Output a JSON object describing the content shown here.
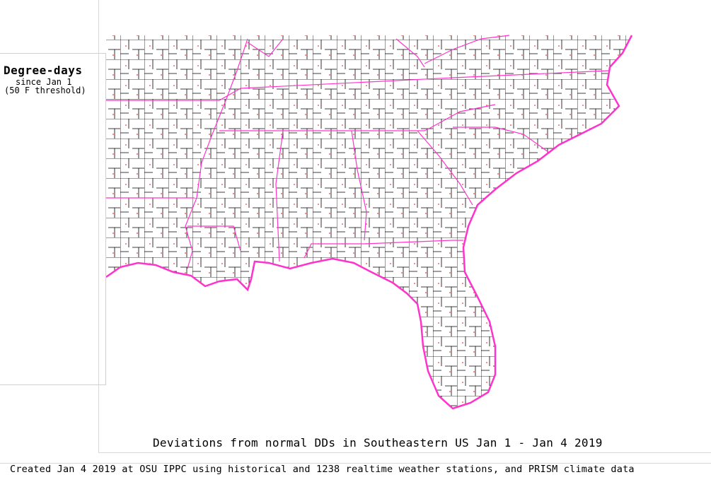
{
  "legend": {
    "title": "Degree-days",
    "subtitle": "since Jan 1",
    "threshold": "(50 F threshold)"
  },
  "map": {
    "title": "Deviations from normal DDs in Southeastern US Jan 1 - Jan 4 2019",
    "region": "Southeastern US",
    "boundary_colors": {
      "state": "#ff33cc",
      "county": "#000000",
      "stations": "#ff0000"
    }
  },
  "footer": {
    "credit": "Created Jan 4 2019 at OSU IPPC using  historical and 1238 realtime weather stations, and PRISM climate data"
  }
}
